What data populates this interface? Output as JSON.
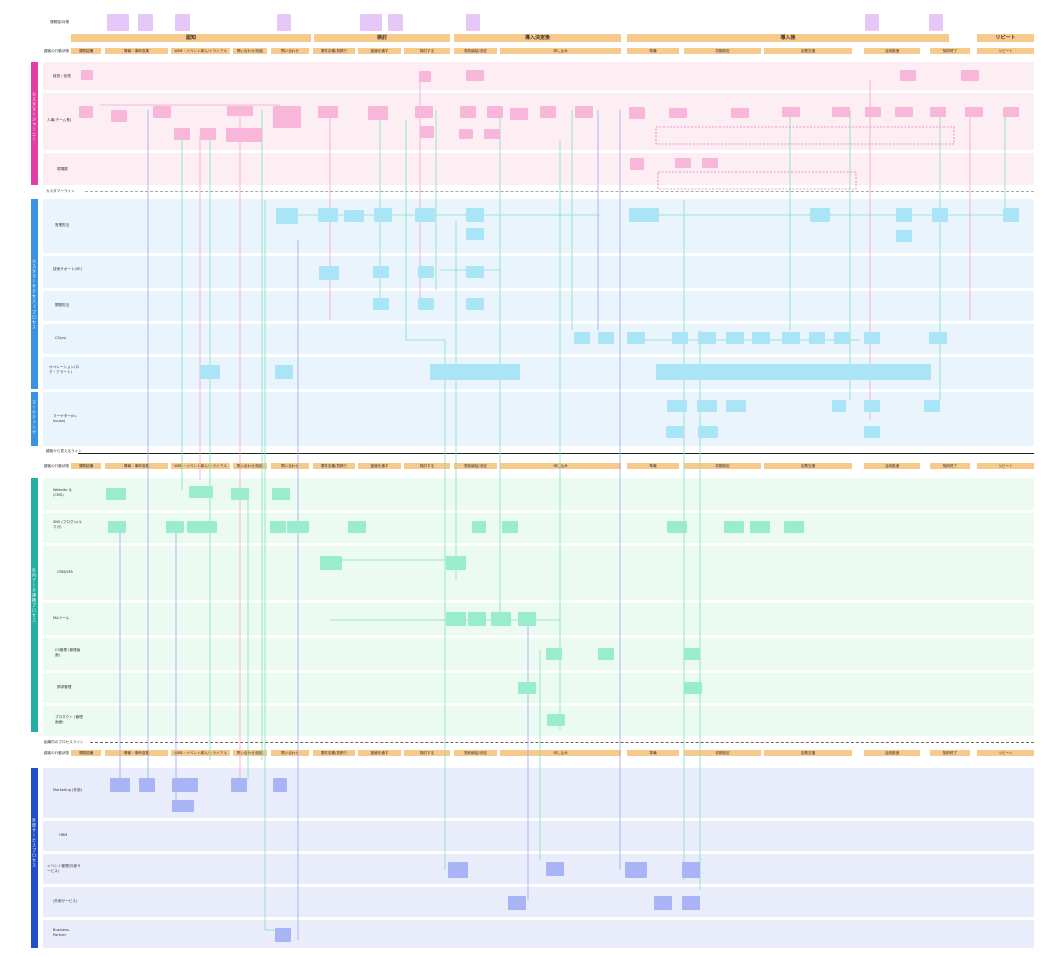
{
  "header": {
    "row_label": "課題感/対策",
    "steps_label": "顧客の行動状態"
  },
  "phases": [
    {
      "label": "認知"
    },
    {
      "label": "検討"
    },
    {
      "label": "導入決定後"
    },
    {
      "label": "導入後"
    },
    {
      "label": "リピート"
    }
  ],
  "steps": [
    {
      "label": "課題認識"
    },
    {
      "label": "情報・事例収集"
    },
    {
      "label": "WEB・イベント導入/トライアル"
    },
    {
      "label": "問い合わせ/相談"
    },
    {
      "label": "問い合わせ"
    },
    {
      "label": "要件定義/見積り"
    },
    {
      "label": "稟議を通す"
    },
    {
      "label": "検討する"
    },
    {
      "label": "契約締結/決定"
    },
    {
      "label": "申し込み"
    },
    {
      "label": "準備"
    },
    {
      "label": "初期設定"
    },
    {
      "label": "定着支援"
    },
    {
      "label": "活用推進"
    },
    {
      "label": "契約終了"
    },
    {
      "label": "リピート"
    }
  ],
  "sections": [
    {
      "label": "カスタマージャーニー",
      "color": "#e53fa6"
    },
    {
      "label": "カスタマーサクセス/プロセス",
      "color": "#3a93e0"
    },
    {
      "label": "マーケティング",
      "color": "#3a93e0"
    },
    {
      "label": "社内データ連携プロセス",
      "color": "#23b0a0"
    },
    {
      "label": "外部サービスプロセス",
      "color": "#1f4fc8"
    }
  ],
  "lanes": [
    {
      "label": "経営 / 役員"
    },
    {
      "label": "人事(チーム長)"
    },
    {
      "label": "現場層"
    },
    {
      "label": "営業担当"
    },
    {
      "label": "技術サポート(SE)"
    },
    {
      "label": "開発担当"
    },
    {
      "label": "CS(cs)"
    },
    {
      "label": "オペレーション(ログ・アラート)"
    },
    {
      "label": "マーケター(in-house)"
    },
    {
      "label": "Website ＆ (CMS)"
    },
    {
      "label": "SNS (ブログ/メルマガ)"
    },
    {
      "label": "CRM/SFA"
    },
    {
      "label": "MAツール"
    },
    {
      "label": "CS管理 (管理画面)"
    },
    {
      "label": "請求管理"
    },
    {
      "label": "プロダクト (管理画面)"
    },
    {
      "label": "Marketing (外部)"
    },
    {
      "label": "HRM"
    },
    {
      "label": "イベント管理(外部サービス)"
    },
    {
      "label": "(外部サービス)"
    },
    {
      "label": "Business Partner"
    }
  ],
  "markers": {
    "customer_line": "カスタマーライン",
    "visibility_line": "顧客から見えるライン",
    "internal_line": "組織内のプロセスライン"
  },
  "colors": {
    "pink_node": "#f8b6da",
    "blue_node": "#a9e4f7",
    "green_node": "#99eccd",
    "lavender_node": "#a8b4f5",
    "note": "#e6c8f8",
    "phase": "#f7c98b"
  }
}
